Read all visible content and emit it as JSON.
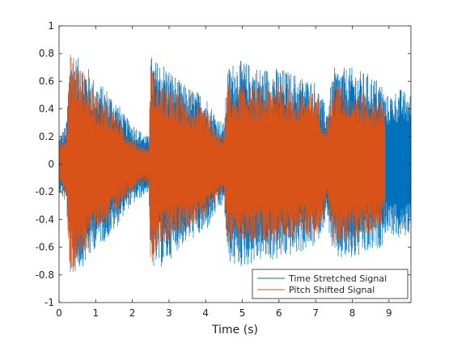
{
  "chart_data": {
    "type": "line",
    "xlabel": "Time (s)",
    "ylabel": "",
    "title": "",
    "xlim": [
      0,
      9.6
    ],
    "ylim": [
      -1,
      1
    ],
    "xticks": [
      0,
      1,
      2,
      3,
      4,
      5,
      6,
      7,
      8,
      9
    ],
    "yticks": [
      -1,
      -0.8,
      -0.6,
      -0.4,
      -0.2,
      0,
      0.2,
      0.4,
      0.6,
      0.8,
      1
    ],
    "ytick_labels": [
      "-1",
      "-0.8",
      "-0.6",
      "-0.4",
      "-0.2",
      "0",
      "0.2",
      "0.4",
      "0.6",
      "0.8",
      "1"
    ],
    "grid": false,
    "legend_position": "bottom-right",
    "series": [
      {
        "name": "Time Stretched Signal",
        "color": "#0072BD",
        "x_range": [
          0,
          9.6
        ],
        "envelope": {
          "t": [
            0,
            0.1,
            0.2,
            0.3,
            0.4,
            0.6,
            0.8,
            1.0,
            1.3,
            1.6,
            1.8,
            2.0,
            2.2,
            2.45,
            2.5,
            2.6,
            2.8,
            3.0,
            3.3,
            3.6,
            4.0,
            4.3,
            4.5,
            4.6,
            4.8,
            5.0,
            5.5,
            6.0,
            6.5,
            7.0,
            7.3,
            7.5,
            8.0,
            8.5,
            8.8,
            8.9,
            9.0,
            9.3,
            9.6
          ],
          "amplitude": [
            0.2,
            0.25,
            0.3,
            0.8,
            0.8,
            0.75,
            0.7,
            0.6,
            0.55,
            0.45,
            0.35,
            0.3,
            0.25,
            0.2,
            0.8,
            0.75,
            0.75,
            0.7,
            0.6,
            0.55,
            0.5,
            0.35,
            0.3,
            0.7,
            0.75,
            0.75,
            0.7,
            0.7,
            0.65,
            0.6,
            0.4,
            0.7,
            0.7,
            0.65,
            0.6,
            0.5,
            0.5,
            0.55,
            0.5
          ]
        }
      },
      {
        "name": "Pitch Shifted Signal",
        "color": "#D95319",
        "x_range": [
          0,
          8.9
        ],
        "envelope": {
          "t": [
            0,
            0.1,
            0.2,
            0.3,
            0.4,
            0.6,
            0.8,
            1.0,
            1.3,
            1.6,
            1.8,
            2.0,
            2.2,
            2.45,
            2.5,
            2.6,
            2.8,
            3.0,
            3.3,
            3.6,
            4.0,
            4.3,
            4.5,
            4.6,
            4.8,
            5.0,
            5.5,
            6.0,
            6.5,
            7.0,
            7.3,
            7.5,
            8.0,
            8.5,
            8.9
          ],
          "amplitude": [
            0.15,
            0.2,
            0.25,
            0.8,
            0.8,
            0.7,
            0.6,
            0.5,
            0.45,
            0.35,
            0.25,
            0.2,
            0.15,
            0.12,
            0.8,
            0.65,
            0.6,
            0.55,
            0.5,
            0.45,
            0.4,
            0.25,
            0.2,
            0.6,
            0.55,
            0.6,
            0.55,
            0.6,
            0.5,
            0.55,
            0.3,
            0.6,
            0.55,
            0.5,
            0.45
          ]
        }
      }
    ]
  }
}
